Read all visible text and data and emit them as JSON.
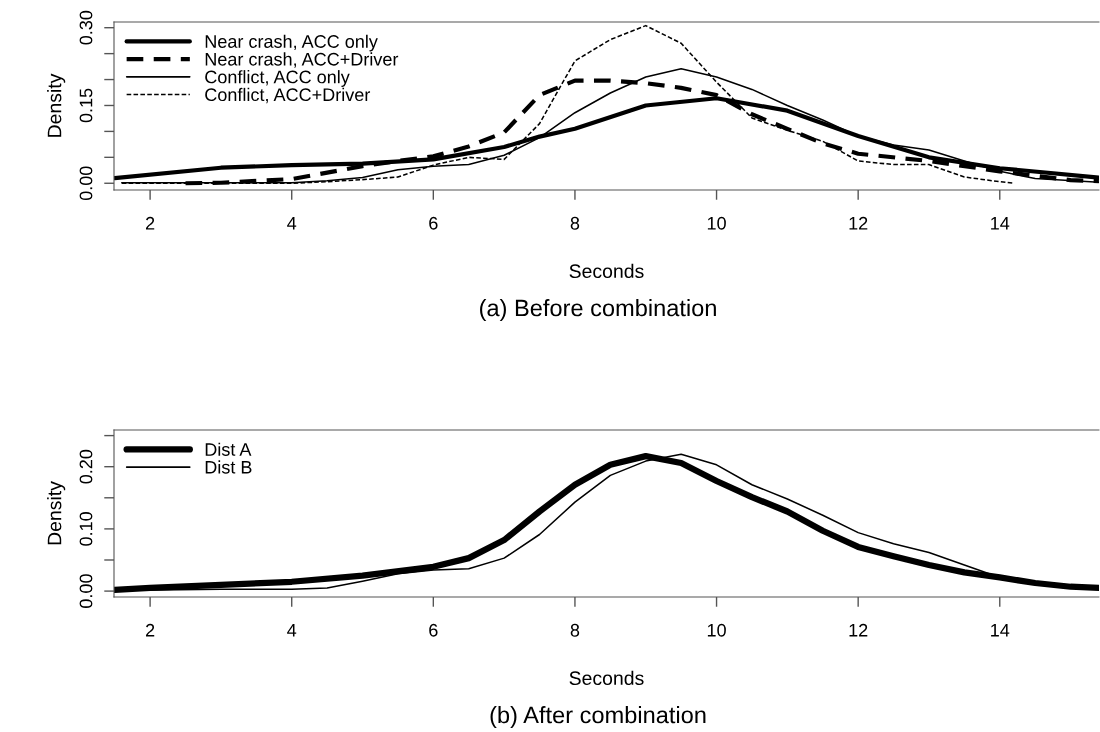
{
  "chart_data": [
    {
      "type": "line",
      "xlabel": "Seconds",
      "ylabel": "Density",
      "annotations": [
        "(a) Before combination"
      ],
      "xlim": [
        1.49,
        15.4
      ],
      "ylim": [
        -0.013,
        0.311
      ],
      "xticks": [
        2,
        4,
        6,
        8,
        10,
        12,
        14
      ],
      "yticks": [
        {
          "value": 0,
          "label": "0.00"
        },
        {
          "value": 0.05,
          "label": null
        },
        {
          "value": 0.1,
          "label": null
        },
        {
          "value": 0.15,
          "label": "0.15"
        },
        {
          "value": 0.2,
          "label": null
        },
        {
          "value": 0.25,
          "label": null
        },
        {
          "value": 0.3,
          "label": "0.30"
        }
      ],
      "grid": false,
      "legend": "top left",
      "marker": "none",
      "series": [
        {
          "name": "Near crash, ACC only",
          "color": "#000000",
          "line_style": "solid",
          "x": [
            1.5,
            3,
            4,
            5,
            6,
            7,
            7.5,
            8,
            9,
            10,
            11,
            12,
            13,
            14,
            15.4
          ],
          "values": [
            0.01,
            0.03,
            0.035,
            0.038,
            0.046,
            0.07,
            0.09,
            0.105,
            0.15,
            0.164,
            0.14,
            0.091,
            0.05,
            0.029,
            0.011
          ]
        },
        {
          "name": "Near crash, ACC+Driver",
          "color": "#000000",
          "line_style": "dashed",
          "x": [
            2.5,
            3,
            4,
            5,
            5.5,
            6,
            6.5,
            7,
            7.5,
            8,
            8.5,
            9,
            9.5,
            10,
            10.5,
            11,
            11.5,
            12,
            13,
            14,
            15,
            15.4
          ],
          "values": [
            0.0,
            0.001,
            0.008,
            0.033,
            0.043,
            0.052,
            0.071,
            0.098,
            0.17,
            0.198,
            0.198,
            0.193,
            0.184,
            0.17,
            0.133,
            0.105,
            0.077,
            0.057,
            0.043,
            0.023,
            0.006,
            0.004
          ]
        },
        {
          "name": "Conflict, ACC only",
          "color": "#000000",
          "line_style": "solid",
          "x": [
            1.6,
            4,
            4.5,
            5,
            5.5,
            6,
            6.5,
            7,
            7.5,
            8,
            8.5,
            9,
            9.5,
            10,
            10.5,
            11,
            11.5,
            12,
            12.5,
            13,
            13.5,
            14,
            14.5,
            15.4
          ],
          "values": [
            0.001,
            0.001,
            0.005,
            0.011,
            0.026,
            0.033,
            0.036,
            0.054,
            0.088,
            0.136,
            0.174,
            0.205,
            0.221,
            0.205,
            0.181,
            0.15,
            0.122,
            0.091,
            0.074,
            0.064,
            0.043,
            0.023,
            0.009,
            0.002
          ]
        },
        {
          "name": "Conflict, ACC+Driver",
          "color": "#000000",
          "line_style": "dashed",
          "x": [
            1.6,
            4,
            4.5,
            5,
            5.5,
            6,
            6.5,
            7,
            7.5,
            8,
            8.5,
            9,
            9.5,
            10,
            10.5,
            11,
            11.5,
            12,
            12.5,
            13,
            13.5,
            14,
            14.2
          ],
          "values": [
            0.0,
            0.0,
            0.003,
            0.007,
            0.012,
            0.035,
            0.05,
            0.046,
            0.115,
            0.236,
            0.277,
            0.304,
            0.27,
            0.195,
            0.126,
            0.102,
            0.081,
            0.043,
            0.036,
            0.036,
            0.012,
            0.003,
            0.0
          ]
        }
      ]
    },
    {
      "type": "line",
      "xlabel": "Seconds",
      "ylabel": "Density",
      "annotations": [
        "(b) After combination"
      ],
      "xlim": [
        1.49,
        15.4
      ],
      "ylim": [
        -0.0095,
        0.259
      ],
      "xticks": [
        2,
        4,
        6,
        8,
        10,
        12,
        14
      ],
      "yticks": [
        {
          "value": 0,
          "label": "0.00"
        },
        {
          "value": 0.05,
          "label": null
        },
        {
          "value": 0.1,
          "label": "0.10"
        },
        {
          "value": 0.15,
          "label": null
        },
        {
          "value": 0.2,
          "label": "0.20"
        },
        {
          "value": 0.25,
          "label": null
        }
      ],
      "grid": false,
      "legend": "top left",
      "marker": "none",
      "series": [
        {
          "name": "Dist A",
          "color": "#000000",
          "line_style": "solid",
          "x": [
            1.5,
            2,
            3,
            4,
            5,
            6,
            6.5,
            7,
            7.5,
            8,
            8.5,
            9,
            9.5,
            10,
            10.5,
            11,
            11.5,
            12,
            12.5,
            13,
            13.5,
            14,
            14.5,
            15,
            15.4
          ],
          "values": [
            0.002,
            0.005,
            0.01,
            0.015,
            0.025,
            0.039,
            0.053,
            0.082,
            0.128,
            0.171,
            0.203,
            0.217,
            0.206,
            0.177,
            0.151,
            0.128,
            0.097,
            0.071,
            0.056,
            0.042,
            0.03,
            0.022,
            0.013,
            0.007,
            0.005
          ]
        },
        {
          "name": "Dist B",
          "color": "#000000",
          "line_style": "solid",
          "x": [
            1.5,
            3,
            4,
            4.5,
            5,
            5.5,
            6,
            6.5,
            7,
            7.5,
            8,
            8.5,
            9,
            9.5,
            10,
            10.5,
            11,
            11.5,
            12,
            12.5,
            13,
            13.5,
            14,
            14.5,
            15,
            15.4
          ],
          "values": [
            0.001,
            0.003,
            0.003,
            0.005,
            0.016,
            0.028,
            0.034,
            0.036,
            0.053,
            0.091,
            0.143,
            0.186,
            0.209,
            0.22,
            0.203,
            0.171,
            0.148,
            0.122,
            0.094,
            0.076,
            0.062,
            0.042,
            0.022,
            0.013,
            0.007,
            0.005
          ]
        }
      ]
    }
  ]
}
